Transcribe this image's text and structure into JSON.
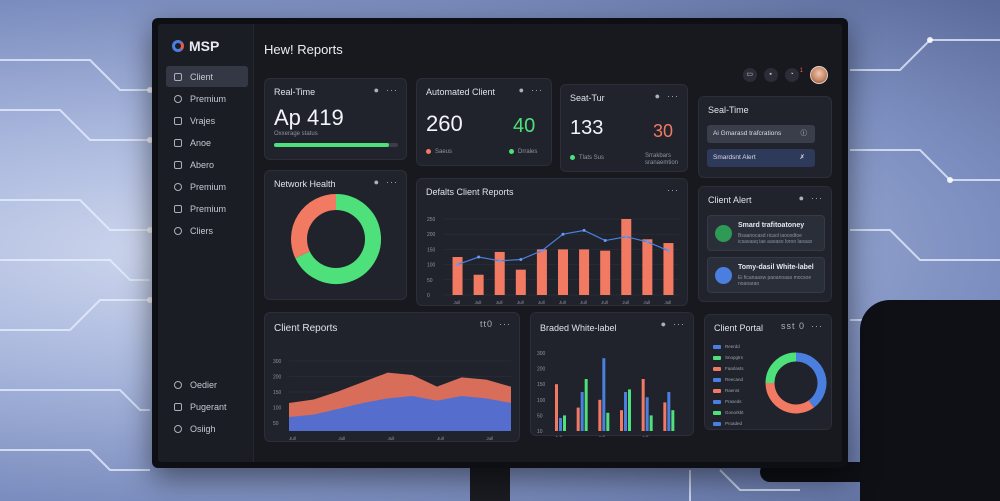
{
  "app": {
    "logo": "MSP",
    "title": "Hew! Reports"
  },
  "sidebar": {
    "items": [
      {
        "label": "Client",
        "icon": "home-icon",
        "active": true
      },
      {
        "label": "Premium",
        "icon": "clock-icon"
      },
      {
        "label": "Vrajes",
        "icon": "list-icon"
      },
      {
        "label": "Anoe",
        "icon": "chart-icon"
      },
      {
        "label": "Abero",
        "icon": "alert-icon"
      },
      {
        "label": "Premium",
        "icon": "clock-icon"
      },
      {
        "label": "Premium",
        "icon": "pin-icon"
      },
      {
        "label": "Cliers",
        "icon": "gear-icon"
      }
    ],
    "bottom": [
      {
        "label": "Oedier",
        "icon": "user-icon"
      },
      {
        "label": "Pugerant",
        "icon": "doc-icon"
      },
      {
        "label": "Osiigh",
        "icon": "gear-icon"
      }
    ]
  },
  "topbar": {
    "icons": [
      "monitor-icon",
      "briefcase-icon",
      "bell-icon"
    ],
    "badge": "1"
  },
  "cards": {
    "realtime": {
      "title": "Real-Time",
      "value": "Ap 419",
      "sub": "Oxxerage status",
      "progress": 0.93
    },
    "automated": {
      "title": "Automated Client",
      "value_a": "260",
      "value_b": "40",
      "legend_a": "Saeus",
      "legend_b": "Drrales"
    },
    "seattur": {
      "title": "Seat-Tur",
      "value_a": "133",
      "value_b": "30",
      "legend_a": "Tlats Sus",
      "legend_b": "Srrakbars sranaemtion"
    },
    "sealtime": {
      "title": "Seal-Time",
      "pill_a": "Ai Gmarasd trafcrations",
      "pill_b": "Smardsnt Alert"
    },
    "network": {
      "title": "Network Health"
    },
    "defalts": {
      "title": "Defalts Client Reports"
    },
    "clientalert": {
      "title": "Client Alert",
      "rows": [
        {
          "title": "Smard trafitoatoney",
          "text": "Bsaanocasd ricaol iaooxdtoe icsavaaq iae aaoaso loroo laoaax"
        },
        {
          "title": "Tomy-dasil White-label",
          "text": "Ei ficanaasw paoanoaas mocsoe noaoarao"
        }
      ]
    },
    "clientreports": {
      "title": "Client Reports",
      "menu_label": "tt0"
    },
    "branded": {
      "title": "Braded White-label"
    },
    "portal": {
      "title": "Client Portal",
      "menu_label": "sst 0"
    }
  },
  "colors": {
    "green": "#4ee07a",
    "salmon": "#f27a63",
    "blue": "#4a7fe0",
    "dark": "#20232b"
  },
  "chart_data": [
    {
      "type": "donut",
      "title": "Network Health",
      "series": [
        {
          "values": [
            68,
            32
          ]
        }
      ],
      "colors": [
        "#4ee07a",
        "#f27a63"
      ]
    },
    {
      "type": "bar",
      "title": "Defalts Client Reports",
      "categories": [
        "Jull",
        "Jull",
        "Jull",
        "Jull",
        "Jull",
        "Jull",
        "Jull",
        "Jull",
        "Jull",
        "Jull",
        "Jull"
      ],
      "values": [
        150,
        80,
        170,
        100,
        180,
        180,
        180,
        175,
        300,
        220,
        205
      ],
      "line": [
        120,
        150,
        135,
        140,
        175,
        240,
        255,
        215,
        230,
        210,
        175
      ],
      "yticks": [
        "250",
        "200",
        "150",
        "100",
        "50",
        "0"
      ],
      "ylim": [
        0,
        300
      ]
    },
    {
      "type": "area",
      "title": "Client Reports",
      "categories": [
        "Jull",
        "Jull",
        "Jull",
        "Jull",
        "Jull",
        "Jull",
        "Jull",
        "Jull",
        "Jull",
        "Jull"
      ],
      "series": [
        {
          "values": [
            120,
            135,
            170,
            210,
            250,
            240,
            190,
            230,
            220,
            190
          ]
        },
        {
          "values": [
            60,
            70,
            95,
            120,
            140,
            150,
            130,
            150,
            140,
            120
          ]
        }
      ],
      "yticks": [
        "300",
        "200",
        "150",
        "100",
        "50"
      ],
      "ylim": [
        0,
        300
      ]
    },
    {
      "type": "bar",
      "title": "Braded White-label",
      "categories": [
        "Jull",
        "Jull",
        "Jull",
        "Jull",
        "Jull",
        "Jull"
      ],
      "series": [
        {
          "values": [
            180,
            90,
            120,
            80,
            200,
            110
          ]
        },
        {
          "values": [
            50,
            150,
            280,
            150,
            130,
            150
          ]
        },
        {
          "values": [
            60,
            200,
            70,
            160,
            60,
            80
          ]
        }
      ],
      "yticks": [
        "300",
        "200",
        "150",
        "100",
        "50",
        "10"
      ],
      "ylim": [
        0,
        300
      ]
    },
    {
      "type": "donut",
      "title": "Client Portal",
      "series": [
        {
          "values": [
            40,
            35,
            25
          ]
        }
      ],
      "colors": [
        "#4a7fe0",
        "#f27a63",
        "#4ee07a"
      ],
      "legend": [
        "Reerdd",
        "Snopgtrs",
        "Faarlasts",
        "Reecand",
        "Raenst",
        "Praseds",
        "Gonorkbt",
        "Proaded"
      ],
      "legend_colors": [
        "#4a7fe0",
        "#4ee07a",
        "#f27a63",
        "#4a7fe0",
        "#f27a63",
        "#4a7fe0",
        "#4ee07a",
        "#4a7fe0"
      ]
    }
  ]
}
